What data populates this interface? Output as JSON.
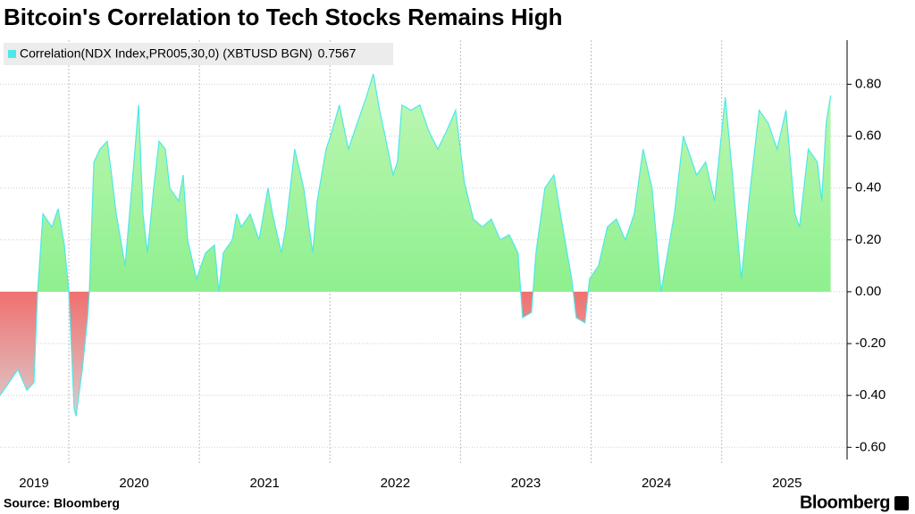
{
  "chart_data": {
    "type": "area",
    "title": "Bitcoin's Correlation to Tech Stocks Remains High",
    "source": "Source: Bloomberg",
    "brand": "Bloomberg",
    "last_value": 0.7567,
    "xlim": [
      2019.473,
      2025.96
    ],
    "ylim": [
      -0.63,
      0.97
    ],
    "yticks": [
      {
        "value": 0.8,
        "label": "0.80"
      },
      {
        "value": 0.6,
        "label": "0.60"
      },
      {
        "value": 0.4,
        "label": "0.40"
      },
      {
        "value": 0.2,
        "label": "0.20"
      },
      {
        "value": 0,
        "label": "0.00"
      },
      {
        "value": -0.2,
        "label": "-0.20"
      },
      {
        "value": -0.4,
        "label": "-0.40"
      },
      {
        "value": -0.6,
        "label": "-0.60"
      }
    ],
    "xgrid": [
      2020,
      2021,
      2022,
      2023,
      2024,
      2025
    ],
    "xticks": [
      {
        "value": 2019.733,
        "label": "2019"
      },
      {
        "value": 2020.5,
        "label": "2020"
      },
      {
        "value": 2021.5,
        "label": "2021"
      },
      {
        "value": 2022.5,
        "label": "2022"
      },
      {
        "value": 2023.5,
        "label": "2023"
      },
      {
        "value": 2024.5,
        "label": "2024"
      },
      {
        "value": 2025.5,
        "label": "2025"
      }
    ],
    "grid": true,
    "positive_color": "#8ef08e",
    "negative_color": "#f07070",
    "x": [
      2019.473,
      2019.542,
      2019.61,
      2019.679,
      2019.733,
      2019.761,
      2019.802,
      2019.87,
      2019.918,
      2019.966,
      2020.0,
      2020.041,
      2020.055,
      2020.103,
      2020.144,
      2020.157,
      2020.192,
      2020.239,
      2020.294,
      2020.328,
      2020.363,
      2020.431,
      2020.499,
      2020.534,
      2020.568,
      2020.602,
      2020.65,
      2020.691,
      2020.739,
      2020.773,
      2020.841,
      2020.876,
      2020.91,
      2020.978,
      2021.047,
      2021.115,
      2021.149,
      2021.183,
      2021.252,
      2021.286,
      2021.32,
      2021.389,
      2021.457,
      2021.525,
      2021.56,
      2021.628,
      2021.662,
      2021.73,
      2021.799,
      2021.867,
      2021.902,
      2021.97,
      2022.004,
      2022.072,
      2022.141,
      2022.209,
      2022.278,
      2022.332,
      2022.38,
      2022.414,
      2022.483,
      2022.517,
      2022.551,
      2022.62,
      2022.688,
      2022.756,
      2022.825,
      2022.893,
      2022.962,
      2023.03,
      2023.098,
      2023.167,
      2023.235,
      2023.304,
      2023.372,
      2023.44,
      2023.475,
      2023.543,
      2023.577,
      2023.646,
      2023.714,
      2023.782,
      2023.851,
      2023.885,
      2023.953,
      2023.988,
      2024.056,
      2024.124,
      2024.193,
      2024.261,
      2024.33,
      2024.398,
      2024.466,
      2024.535,
      2024.569,
      2024.637,
      2024.706,
      2024.74,
      2024.808,
      2024.877,
      2024.945,
      2025.027,
      2025.082,
      2025.15,
      2025.219,
      2025.287,
      2025.356,
      2025.424,
      2025.492,
      2025.561,
      2025.595,
      2025.663,
      2025.732,
      2025.766,
      2025.8,
      2025.834
    ],
    "series": [
      {
        "name": "Correlation(NDX Index,PR005,30,0) (XBTUSD BGN)",
        "color": "#4ee8e8",
        "values": [
          -0.4,
          -0.35,
          -0.3,
          -0.38,
          -0.35,
          0.0,
          0.3,
          0.25,
          0.32,
          0.18,
          0.0,
          -0.45,
          -0.48,
          -0.3,
          -0.1,
          0.0,
          0.5,
          0.55,
          0.58,
          0.45,
          0.3,
          0.1,
          0.5,
          0.72,
          0.3,
          0.15,
          0.4,
          0.58,
          0.55,
          0.4,
          0.35,
          0.45,
          0.2,
          0.05,
          0.15,
          0.18,
          0.0,
          0.15,
          0.2,
          0.3,
          0.25,
          0.3,
          0.2,
          0.4,
          0.3,
          0.15,
          0.25,
          0.55,
          0.4,
          0.15,
          0.35,
          0.55,
          0.6,
          0.72,
          0.55,
          0.65,
          0.75,
          0.84,
          0.7,
          0.62,
          0.45,
          0.5,
          0.72,
          0.7,
          0.72,
          0.62,
          0.55,
          0.62,
          0.7,
          0.42,
          0.28,
          0.25,
          0.28,
          0.2,
          0.22,
          0.15,
          -0.1,
          -0.08,
          0.15,
          0.4,
          0.45,
          0.25,
          0.05,
          -0.1,
          -0.12,
          0.05,
          0.1,
          0.25,
          0.28,
          0.2,
          0.3,
          0.55,
          0.4,
          0.0,
          0.1,
          0.3,
          0.6,
          0.55,
          0.45,
          0.5,
          0.35,
          0.75,
          0.45,
          0.05,
          0.4,
          0.7,
          0.65,
          0.55,
          0.7,
          0.3,
          0.25,
          0.55,
          0.5,
          0.35,
          0.65,
          0.7567
        ]
      }
    ]
  }
}
